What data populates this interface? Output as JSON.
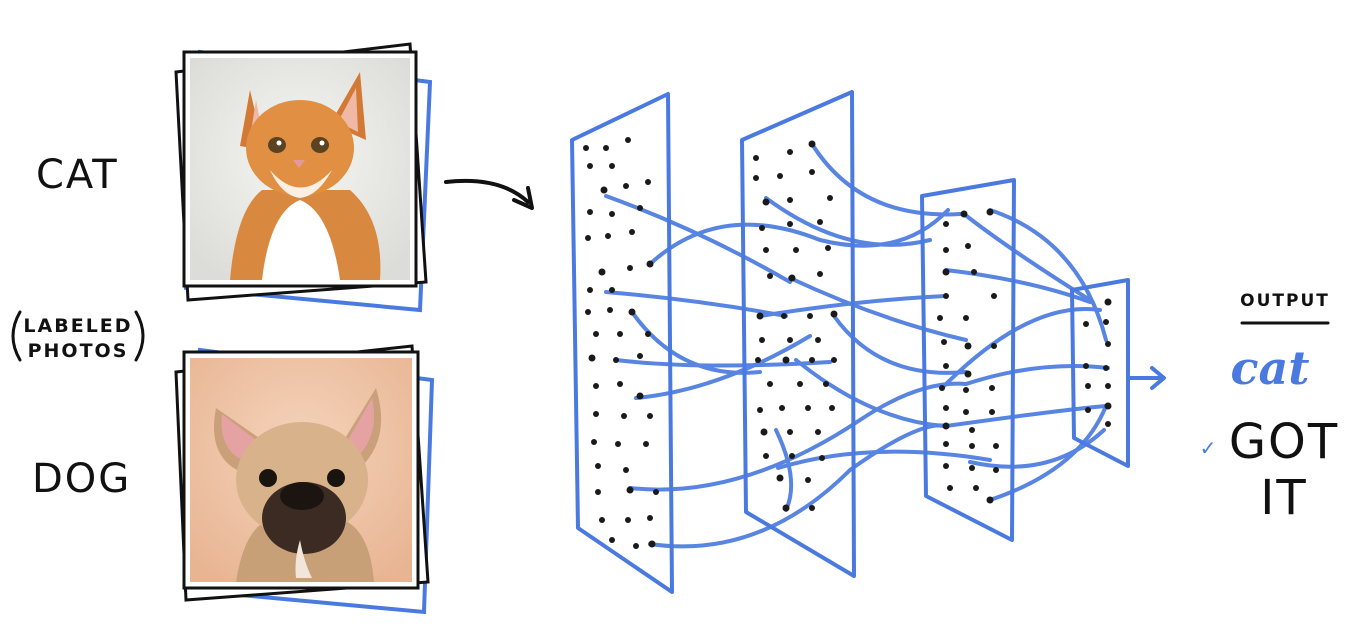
{
  "labels": {
    "cat": "CAT",
    "labeled_line1": "LABELED",
    "labeled_line2": "PHOTOS",
    "dog": "DOG"
  },
  "output": {
    "heading": "OUTPUT",
    "prediction": "cat",
    "verdict_line1": "GOT",
    "verdict_line2": "IT",
    "check_mark": "✓"
  },
  "colors": {
    "network_blue": "#4a7ae0",
    "ink": "#111111",
    "cat_background": "#ecebe8",
    "dog_background": "#efc9ae"
  },
  "icons": [
    "cat-photo",
    "dog-photo",
    "neural-network",
    "arrow-icon",
    "check-icon"
  ]
}
